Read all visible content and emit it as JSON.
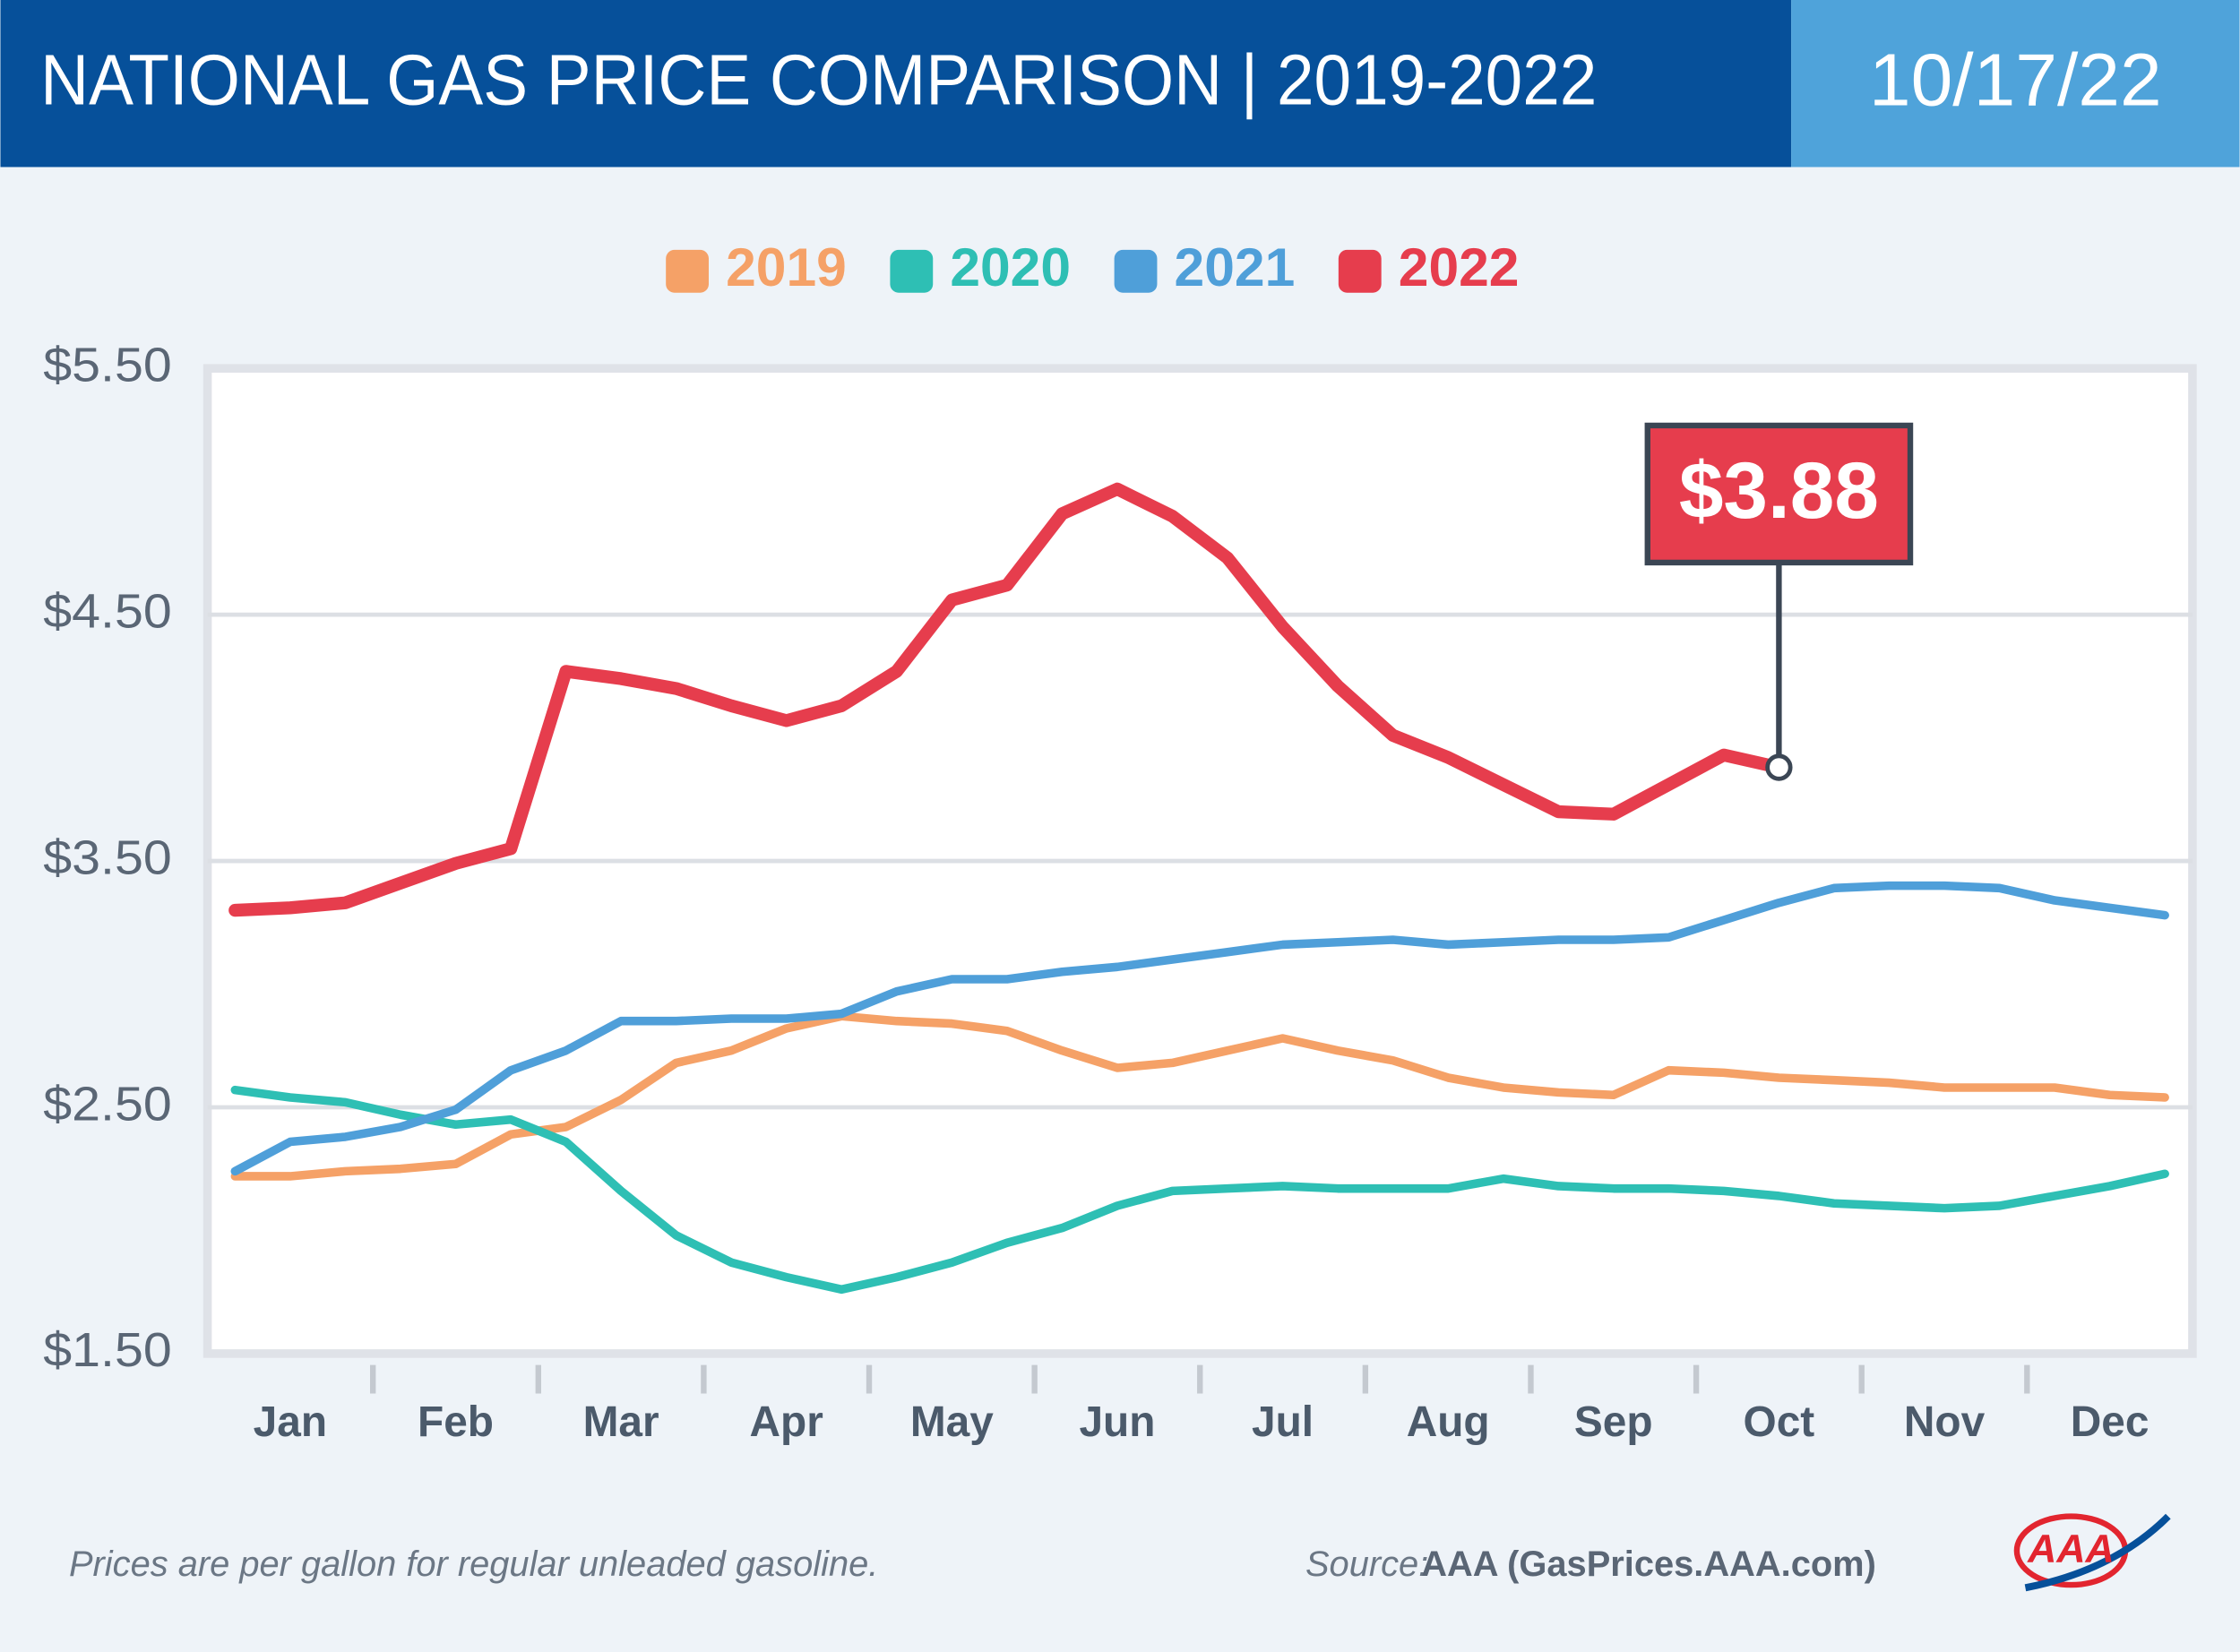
{
  "chart_data": {
    "type": "line",
    "title": "NATIONAL GAS PRICE COMPARISON | 2019-2022",
    "date": "10/17/22",
    "categories": [
      null,
      "Jan",
      null,
      null,
      "Feb",
      null,
      null,
      "Mar",
      null,
      null,
      "Apr",
      null,
      null,
      "May",
      null,
      null,
      "Jun",
      null,
      null,
      "Jul",
      null,
      null,
      "Aug",
      null,
      null,
      "Sep",
      null,
      null,
      "Oct",
      null,
      null,
      "Nov",
      null,
      null,
      "Dec",
      null
    ],
    "series": [
      {
        "name": "2019",
        "color": "#f5a167",
        "values": [
          2.22,
          2.22,
          2.24,
          2.25,
          2.27,
          2.39,
          2.42,
          2.53,
          2.68,
          2.73,
          2.82,
          2.87,
          2.85,
          2.84,
          2.81,
          2.73,
          2.66,
          2.68,
          2.73,
          2.78,
          2.73,
          2.69,
          2.62,
          2.58,
          2.56,
          2.55,
          2.65,
          2.64,
          2.62,
          2.61,
          2.6,
          2.58,
          2.58,
          2.58,
          2.55,
          2.54
        ]
      },
      {
        "name": "2020",
        "color": "#2ebfb4",
        "values": [
          2.57,
          2.54,
          2.52,
          2.47,
          2.43,
          2.45,
          2.36,
          2.16,
          1.98,
          1.87,
          1.81,
          1.76,
          1.81,
          1.87,
          1.95,
          2.01,
          2.1,
          2.16,
          2.17,
          2.18,
          2.17,
          2.17,
          2.17,
          2.21,
          2.18,
          2.17,
          2.17,
          2.16,
          2.14,
          2.11,
          2.1,
          2.09,
          2.1,
          2.14,
          2.18,
          2.23
        ]
      },
      {
        "name": "2021",
        "color": "#4f9fd9",
        "values": [
          2.24,
          2.36,
          2.38,
          2.42,
          2.49,
          2.65,
          2.73,
          2.85,
          2.85,
          2.86,
          2.86,
          2.88,
          2.97,
          3.02,
          3.02,
          3.05,
          3.07,
          3.1,
          3.13,
          3.16,
          3.17,
          3.18,
          3.16,
          3.17,
          3.18,
          3.18,
          3.19,
          3.26,
          3.33,
          3.39,
          3.4,
          3.4,
          3.39,
          3.34,
          3.31,
          3.28
        ]
      },
      {
        "name": "2022",
        "color": "#e63d4d",
        "values": [
          3.3,
          3.31,
          3.33,
          3.41,
          3.49,
          3.55,
          4.27,
          4.24,
          4.2,
          4.13,
          4.07,
          4.13,
          4.27,
          4.56,
          4.62,
          4.91,
          5.01,
          4.9,
          4.73,
          4.45,
          4.21,
          4.01,
          3.92,
          3.81,
          3.7,
          3.69,
          3.81,
          3.93,
          3.88,
          null,
          null,
          null,
          null,
          null,
          null,
          null
        ],
        "value_labels": [
          null,
          null,
          null,
          null,
          null,
          null,
          null,
          null,
          null,
          null,
          null,
          null,
          null,
          null,
          null,
          null,
          null,
          null,
          null,
          null,
          null,
          null,
          null,
          null,
          null,
          null,
          null,
          null,
          "$3.88",
          null,
          null,
          null,
          null,
          null,
          null,
          null
        ]
      }
    ],
    "ylim": [
      1.5,
      5.5
    ],
    "yticks": [
      {
        "value": 1.5,
        "label": "$1.50"
      },
      {
        "value": 2.5,
        "label": "$2.50"
      },
      {
        "value": 3.5,
        "label": "$3.50"
      },
      {
        "value": 4.5,
        "label": "$4.50"
      },
      {
        "value": 5.5,
        "label": "$5.50"
      }
    ],
    "grid": true,
    "legend": "top",
    "footnote": "Prices are per gallon for regular unleaded gasoline.",
    "source_label": "Source:",
    "source": "AAA (GasPrices.AAA.com)",
    "logo": "AAA"
  }
}
